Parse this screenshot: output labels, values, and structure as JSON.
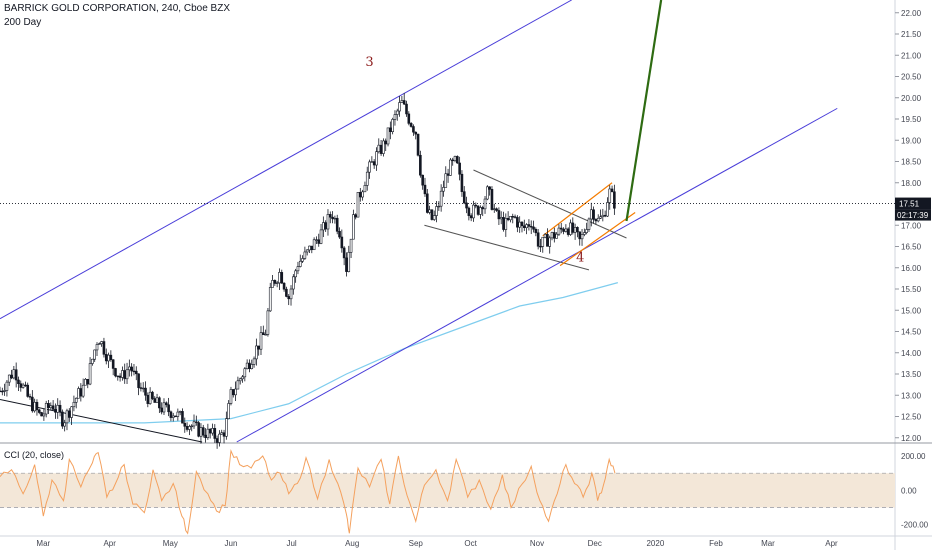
{
  "header": {
    "title": "BARRICK GOLD CORPORATION, 240, Cboe BZX",
    "subtitle": "200 Day"
  },
  "cci_label": "CCI (20, close)",
  "colors": {
    "candle": "#131722",
    "sma": "#7fcdee",
    "channel": "#4a3ed9",
    "wedge": "#555555",
    "flag": "#f57c00",
    "projection": "#2e6b12",
    "cci": "#f4a15e",
    "cci_band": "#f3e7d8",
    "wave_label": "#8b1a1a",
    "price_tag": "#131722"
  },
  "chart_data": {
    "type": "candlestick",
    "y_range": [
      11.9,
      22.3
    ],
    "x_range": [
      0,
      310
    ],
    "y_ticks": [
      "12.00",
      "12.50",
      "13.00",
      "13.50",
      "14.00",
      "14.50",
      "15.00",
      "15.50",
      "16.00",
      "16.50",
      "17.00",
      "17.50",
      "18.00",
      "18.50",
      "19.00",
      "19.50",
      "20.00",
      "20.50",
      "21.00",
      "21.50",
      "22.00"
    ],
    "x_ticks": [
      {
        "label": "Mar",
        "x": 15
      },
      {
        "label": "Apr",
        "x": 38
      },
      {
        "label": "May",
        "x": 59
      },
      {
        "label": "Jun",
        "x": 80
      },
      {
        "label": "Jul",
        "x": 101
      },
      {
        "label": "Aug",
        "x": 122
      },
      {
        "label": "Sep",
        "x": 144
      },
      {
        "label": "Oct",
        "x": 163
      },
      {
        "label": "Nov",
        "x": 186
      },
      {
        "label": "Dec",
        "x": 206
      },
      {
        "label": "2020",
        "x": 227
      },
      {
        "label": "Feb",
        "x": 248
      },
      {
        "label": "Mar",
        "x": 266
      },
      {
        "label": "Apr",
        "x": 288
      }
    ],
    "price_path": [
      [
        0,
        13.1
      ],
      [
        5,
        13.6
      ],
      [
        10,
        12.9
      ],
      [
        14,
        12.5
      ],
      [
        18,
        12.8
      ],
      [
        22,
        12.4
      ],
      [
        26,
        12.9
      ],
      [
        30,
        13.3
      ],
      [
        34,
        14.4
      ],
      [
        36,
        14.1
      ],
      [
        38,
        13.8
      ],
      [
        42,
        13.4
      ],
      [
        45,
        13.7
      ],
      [
        48,
        13.2
      ],
      [
        52,
        12.9
      ],
      [
        56,
        12.7
      ],
      [
        60,
        12.6
      ],
      [
        64,
        12.4
      ],
      [
        68,
        12.2
      ],
      [
        72,
        12.1
      ],
      [
        76,
        12.0
      ],
      [
        78,
        12.2
      ],
      [
        80,
        13.0
      ],
      [
        84,
        13.5
      ],
      [
        88,
        14.0
      ],
      [
        92,
        14.5
      ],
      [
        94,
        15.6
      ],
      [
        97,
        15.9
      ],
      [
        100,
        15.3
      ],
      [
        103,
        16.1
      ],
      [
        106,
        16.3
      ],
      [
        109,
        16.6
      ],
      [
        112,
        16.9
      ],
      [
        115,
        17.3
      ],
      [
        118,
        16.8
      ],
      [
        120,
        16.0
      ],
      [
        122,
        17.0
      ],
      [
        124,
        17.6
      ],
      [
        127,
        18.2
      ],
      [
        130,
        18.6
      ],
      [
        133,
        18.9
      ],
      [
        136,
        19.4
      ],
      [
        139,
        19.9
      ],
      [
        141,
        19.6
      ],
      [
        144,
        19.2
      ],
      [
        146,
        18.1
      ],
      [
        148,
        17.3
      ],
      [
        150,
        17.1
      ],
      [
        152,
        17.5
      ],
      [
        155,
        18.3
      ],
      [
        158,
        18.5
      ],
      [
        160,
        17.8
      ],
      [
        163,
        17.3
      ],
      [
        166,
        17.4
      ],
      [
        169,
        17.8
      ],
      [
        172,
        17.2
      ],
      [
        175,
        17.0
      ],
      [
        178,
        17.2
      ],
      [
        181,
        16.9
      ],
      [
        184,
        17.1
      ],
      [
        187,
        16.5
      ],
      [
        190,
        16.7
      ],
      [
        193,
        16.8
      ],
      [
        196,
        17.0
      ],
      [
        199,
        16.8
      ],
      [
        201,
        16.6
      ],
      [
        203,
        17.0
      ],
      [
        205,
        17.4
      ],
      [
        207,
        17.1
      ],
      [
        209,
        17.2
      ],
      [
        211,
        17.8
      ],
      [
        213,
        17.51
      ]
    ],
    "sma200": [
      [
        0,
        12.35
      ],
      [
        50,
        12.35
      ],
      [
        80,
        12.45
      ],
      [
        100,
        12.8
      ],
      [
        120,
        13.5
      ],
      [
        140,
        14.1
      ],
      [
        160,
        14.6
      ],
      [
        180,
        15.1
      ],
      [
        195,
        15.3
      ],
      [
        214,
        15.65
      ]
    ],
    "cci": {
      "ticks": [
        "200.00",
        "0.00",
        "-200.00"
      ],
      "band": [
        100,
        -100
      ],
      "range": [
        -260,
        270
      ],
      "path": [
        [
          0,
          80
        ],
        [
          4,
          120
        ],
        [
          8,
          -20
        ],
        [
          12,
          150
        ],
        [
          15,
          -150
        ],
        [
          18,
          60
        ],
        [
          22,
          -60
        ],
        [
          24,
          180
        ],
        [
          28,
          20
        ],
        [
          32,
          160
        ],
        [
          34,
          220
        ],
        [
          37,
          -40
        ],
        [
          40,
          40
        ],
        [
          43,
          150
        ],
        [
          46,
          -80
        ],
        [
          50,
          -130
        ],
        [
          53,
          120
        ],
        [
          56,
          -60
        ],
        [
          60,
          40
        ],
        [
          63,
          -150
        ],
        [
          65,
          -250
        ],
        [
          68,
          110
        ],
        [
          72,
          -20
        ],
        [
          75,
          -120
        ],
        [
          78,
          -90
        ],
        [
          80,
          230
        ],
        [
          83,
          150
        ],
        [
          87,
          130
        ],
        [
          91,
          200
        ],
        [
          94,
          60
        ],
        [
          97,
          100
        ],
        [
          100,
          -20
        ],
        [
          103,
          40
        ],
        [
          106,
          190
        ],
        [
          110,
          -50
        ],
        [
          114,
          180
        ],
        [
          117,
          40
        ],
        [
          120,
          -140
        ],
        [
          121,
          -250
        ],
        [
          124,
          130
        ],
        [
          128,
          20
        ],
        [
          132,
          180
        ],
        [
          135,
          -80
        ],
        [
          138,
          200
        ],
        [
          141,
          -30
        ],
        [
          144,
          -180
        ],
        [
          147,
          30
        ],
        [
          151,
          120
        ],
        [
          155,
          -60
        ],
        [
          158,
          180
        ],
        [
          162,
          -40
        ],
        [
          166,
          60
        ],
        [
          170,
          -110
        ],
        [
          174,
          90
        ],
        [
          177,
          -100
        ],
        [
          181,
          40
        ],
        [
          184,
          140
        ],
        [
          187,
          -60
        ],
        [
          190,
          -180
        ],
        [
          193,
          -20
        ],
        [
          196,
          150
        ],
        [
          199,
          40
        ],
        [
          202,
          -40
        ],
        [
          205,
          100
        ],
        [
          207,
          -60
        ],
        [
          209,
          30
        ],
        [
          211,
          180
        ],
        [
          213,
          100
        ]
      ]
    },
    "annotations": [
      {
        "label": "3",
        "x": 128,
        "y": 20.75
      },
      {
        "label": "4",
        "x": 201,
        "y": 16.15
      }
    ],
    "last_price": {
      "value": "17.51",
      "time": "02:17:39",
      "y": 17.51
    },
    "lines": {
      "channel_upper": [
        [
          0,
          14.8
        ],
        [
          198,
          22.3
        ]
      ],
      "channel_lower": [
        [
          82,
          11.9
        ],
        [
          290,
          19.75
        ]
      ],
      "wedge_top": [
        [
          164,
          18.3
        ],
        [
          217,
          16.7
        ]
      ],
      "wedge_bottom": [
        [
          147,
          17.0
        ],
        [
          204,
          15.95
        ]
      ],
      "flag_top": [
        [
          188,
          16.75
        ],
        [
          212,
          18.0
        ]
      ],
      "flag_bottom": [
        [
          194,
          16.05
        ],
        [
          220,
          17.3
        ]
      ],
      "projection": [
        [
          217,
          17.1
        ],
        [
          229,
          22.3
        ]
      ],
      "early_downtrend": [
        [
          0,
          12.9
        ],
        [
          70,
          11.9
        ]
      ]
    }
  }
}
